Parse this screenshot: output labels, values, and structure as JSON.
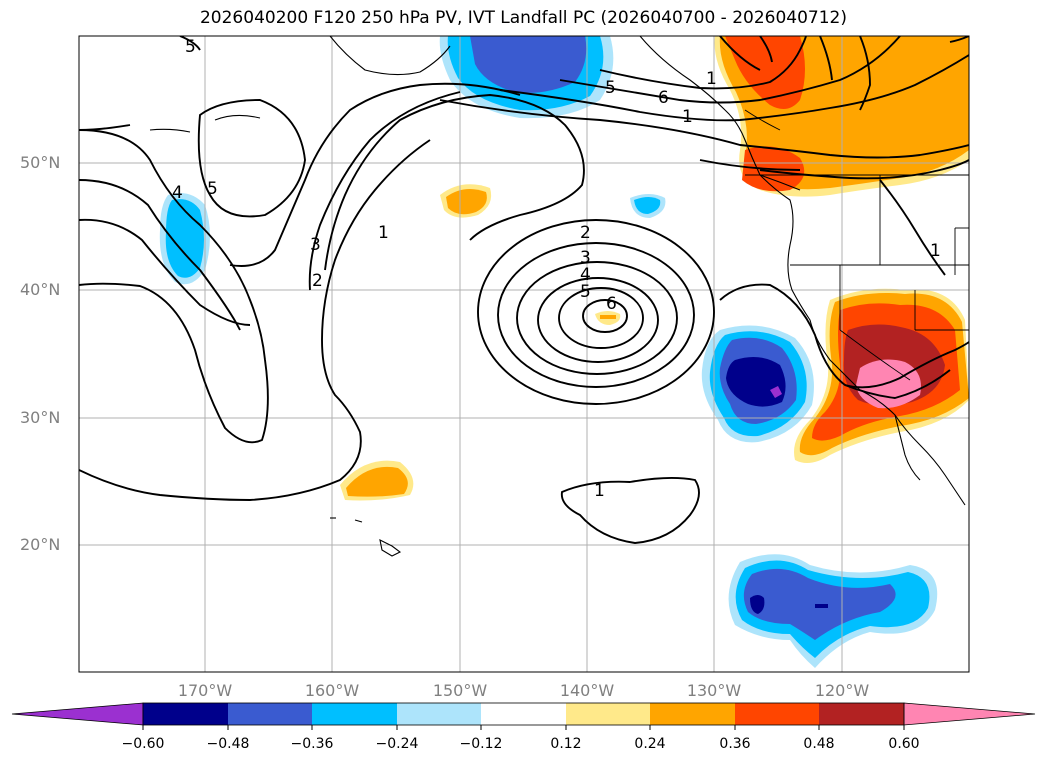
{
  "title": "2026040200 F120 250 hPa PV, IVT Landfall PC (2026040700 - 2026040712)",
  "lat_labels": [
    "50°N",
    "40°N",
    "30°N",
    "20°N"
  ],
  "lon_labels": [
    "170°W",
    "160°W",
    "150°W",
    "140°W",
    "130°W",
    "120°W"
  ],
  "colorbar": {
    "ticks": [
      "−0.60",
      "−0.48",
      "−0.36",
      "−0.24",
      "−0.12",
      "0.12",
      "0.24",
      "0.36",
      "0.48",
      "0.60"
    ],
    "colors": [
      "#9b30d0",
      "#00008b",
      "#3a5bd0",
      "#00bfff",
      "#ade4fb",
      "#ffffff",
      "#ffe98a",
      "#ffa500",
      "#ff4500",
      "#b22222",
      "#ff85b2"
    ]
  },
  "contour_labels": [
    "5",
    "4",
    "5",
    "3",
    "2",
    "1",
    "2",
    "3",
    "4",
    "5",
    "6",
    "1",
    "5",
    "6",
    "1",
    "1",
    "1"
  ],
  "palette": {
    "dark_blue": "#00008b",
    "mid_blue": "#3a5bd0",
    "cyan": "#00bfff",
    "light_blue": "#ade4fb",
    "yellow": "#ffe98a",
    "orange": "#ffa500",
    "red_orange": "#ff4500",
    "dark_red": "#b22222",
    "pink": "#ff85b2",
    "grid": "#b0b0b0",
    "contour": "#000000"
  }
}
